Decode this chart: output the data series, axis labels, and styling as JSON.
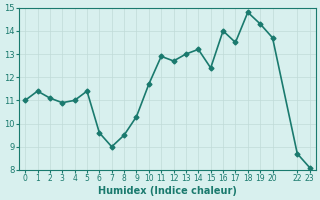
{
  "x": [
    0,
    1,
    2,
    3,
    4,
    5,
    6,
    7,
    8,
    9,
    10,
    11,
    12,
    13,
    14,
    15,
    16,
    17,
    18,
    19,
    20,
    22,
    23
  ],
  "y": [
    11.0,
    11.4,
    11.1,
    10.9,
    11.0,
    11.4,
    9.6,
    9.0,
    9.5,
    10.3,
    11.7,
    12.9,
    12.7,
    13.0,
    13.2,
    12.4,
    14.0,
    13.5,
    14.8,
    14.3,
    13.7,
    8.7,
    8.1
  ],
  "line_color": "#1a7a6e",
  "bg_color": "#d8f0ee",
  "grid_color": "#c0dbd8",
  "axis_color": "#1a7a6e",
  "xlabel": "Humidex (Indice chaleur)",
  "xlim": [
    -0.5,
    23.5
  ],
  "ylim": [
    8,
    15
  ],
  "yticks": [
    8,
    9,
    10,
    11,
    12,
    13,
    14,
    15
  ],
  "marker_size": 2.5,
  "line_width": 1.2
}
